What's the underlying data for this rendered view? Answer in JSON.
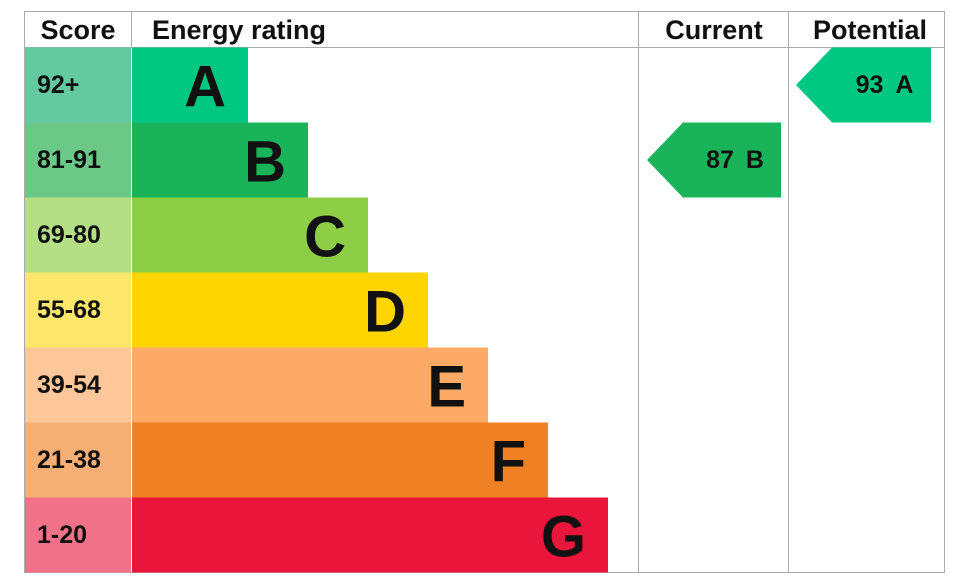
{
  "header": {
    "score": "Score",
    "rating": "Energy rating",
    "current": "Current",
    "potential": "Potential"
  },
  "bands": [
    {
      "score": "92+",
      "letter": "A",
      "score_color": "#63c9a0",
      "bar_color": "#00c781"
    },
    {
      "score": "81-91",
      "letter": "B",
      "score_color": "#6cc886",
      "bar_color": "#19b459"
    },
    {
      "score": "69-80",
      "letter": "C",
      "score_color": "#b4df84",
      "bar_color": "#8dce46"
    },
    {
      "score": "55-68",
      "letter": "D",
      "score_color": "#fde76a",
      "bar_color": "#ffd500"
    },
    {
      "score": "39-54",
      "letter": "E",
      "score_color": "#fdc799",
      "bar_color": "#fcaa65"
    },
    {
      "score": "21-38",
      "letter": "F",
      "score_color": "#f5ae74",
      "bar_color": "#ef8023"
    },
    {
      "score": "1-20",
      "letter": "G",
      "score_color": "#f17288",
      "bar_color": "#e9153b"
    }
  ],
  "current": {
    "score": "87",
    "letter": "B"
  },
  "potential": {
    "score": "93",
    "letter": "A"
  }
}
